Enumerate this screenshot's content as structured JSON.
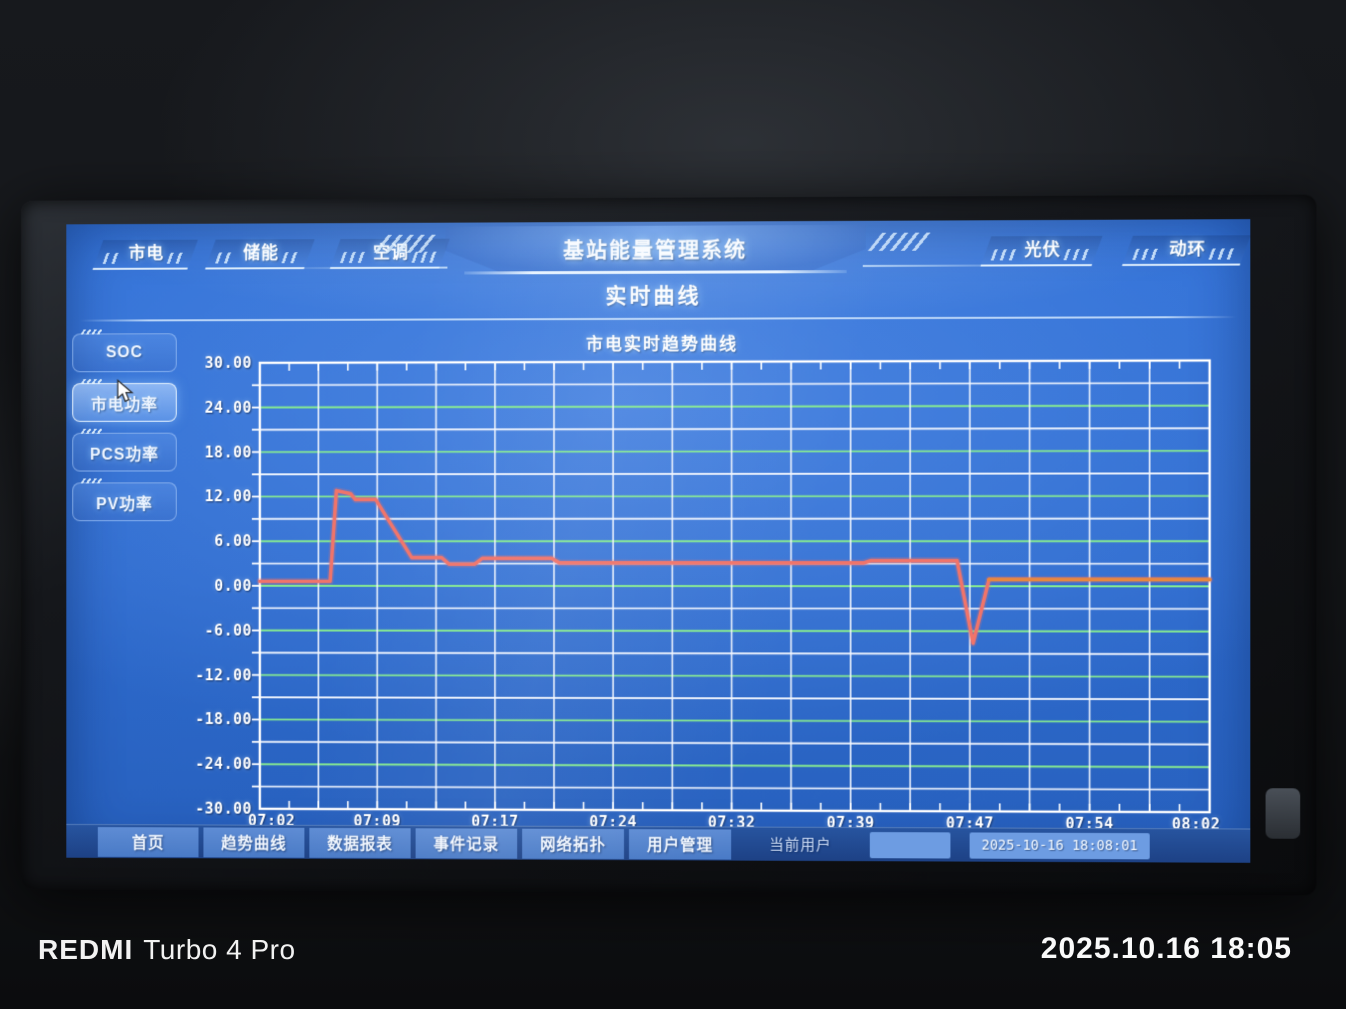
{
  "header": {
    "title": "基站能量管理系统",
    "subtitle": "实时曲线",
    "tabs_left": [
      {
        "label": "市电"
      },
      {
        "label": "储能"
      },
      {
        "label": "空调"
      }
    ],
    "tabs_right": [
      {
        "label": "光伏"
      },
      {
        "label": "动环"
      }
    ]
  },
  "sidebar": {
    "buttons": [
      {
        "label": "SOC",
        "selected": false
      },
      {
        "label": "市电功率",
        "selected": true
      },
      {
        "label": "PCS功率",
        "selected": false
      },
      {
        "label": "PV功率",
        "selected": false
      }
    ]
  },
  "chart_data": {
    "type": "line",
    "title": "市电实时趋势曲线",
    "ylim": [
      -30,
      30
    ],
    "y_tick_step": 6,
    "y_grid_step": 3,
    "x_ticks": [
      "07:02",
      "07:09",
      "07:17",
      "07:24",
      "07:32",
      "07:39",
      "07:47",
      "07:54",
      "08:02"
    ],
    "x_range_minutes": [
      0,
      60
    ],
    "grid": true,
    "grid_color_major": "#8af08e",
    "grid_color_minor": "#f4f8ff",
    "border_color": "#ffffff",
    "legend": "none",
    "series": [
      {
        "name": "市电功率",
        "color": "#f0746a",
        "points": [
          [
            0,
            0.6
          ],
          [
            4.5,
            0.6
          ],
          [
            4.9,
            12.8
          ],
          [
            5.8,
            12.4
          ],
          [
            6.1,
            11.6
          ],
          [
            7.4,
            11.6
          ],
          [
            9.7,
            3.8
          ],
          [
            11.6,
            3.8
          ],
          [
            12.1,
            2.9
          ],
          [
            13.7,
            2.9
          ],
          [
            14.2,
            3.7
          ],
          [
            18.6,
            3.7
          ],
          [
            19.1,
            3.1
          ],
          [
            38.3,
            3.1
          ],
          [
            38.8,
            3.4
          ],
          [
            44.2,
            3.4
          ],
          [
            45.2,
            -7.6
          ],
          [
            46.2,
            0.9
          ],
          [
            60,
            0.9
          ]
        ],
        "tail_segment": {
          "points": [
            [
              46.2,
              0.9
            ],
            [
              60,
              0.9
            ]
          ],
          "color": "#e8873f"
        }
      }
    ]
  },
  "bottombar": {
    "items": [
      "首页",
      "趋势曲线",
      "数据报表",
      "事件记录",
      "网络拓扑",
      "用户管理"
    ],
    "current_user_label": "当前用户",
    "current_user_value": "",
    "datetime": "2025-10-16 18:08:01"
  },
  "photo": {
    "watermark_brand": "REDMI",
    "watermark_model": "Turbo 4 Pro",
    "watermark_datetime": "2025.10.16 18:05"
  },
  "colors": {
    "screen_blue": "#2e6bce",
    "grid_white": "#f4f8ff",
    "grid_green": "#8af08e",
    "curve_red": "#f0746a",
    "curve_tail_orange": "#e8873f",
    "bar_button_blue": "#5e8cd4",
    "field_blue": "#6d9ce2"
  }
}
